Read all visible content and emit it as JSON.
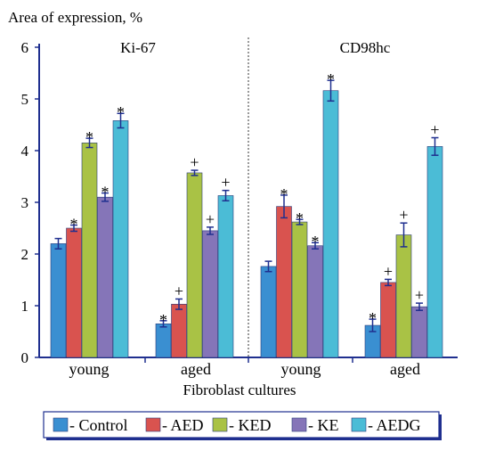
{
  "chart_data": {
    "type": "bar",
    "ylabel": "Area of expression, %",
    "xlabel": "Fibroblast cultures",
    "ylim": [
      0,
      6
    ],
    "yticks": [
      0,
      1,
      2,
      3,
      4,
      5,
      6
    ],
    "grid": false,
    "legend_position": "bottom",
    "panels": [
      {
        "title": "Ki-67",
        "categories": [
          "young",
          "aged"
        ]
      },
      {
        "title": "CD98hc",
        "categories": [
          "young",
          "aged"
        ]
      }
    ],
    "series": [
      {
        "name": "Control",
        "color": "#3a8fd1",
        "values": [
          2.2,
          0.65,
          1.76,
          0.62
        ],
        "errors": [
          0.1,
          0.06,
          0.1,
          0.12
        ],
        "markers": [
          "",
          "*",
          "",
          "*"
        ]
      },
      {
        "name": "AED",
        "color": "#d9534f",
        "values": [
          2.5,
          1.03,
          2.92,
          1.45
        ],
        "errors": [
          0.06,
          0.1,
          0.22,
          0.06
        ],
        "markers": [
          "*",
          "+",
          "*",
          "+"
        ]
      },
      {
        "name": "KED",
        "color": "#a9c245",
        "values": [
          4.15,
          3.57,
          2.62,
          2.37
        ],
        "errors": [
          0.09,
          0.05,
          0.05,
          0.23
        ],
        "markers": [
          "*",
          "+",
          "*",
          "+"
        ]
      },
      {
        "name": "KE",
        "color": "#8575b8",
        "values": [
          3.1,
          2.45,
          2.16,
          0.98
        ],
        "errors": [
          0.08,
          0.07,
          0.06,
          0.07
        ],
        "markers": [
          "*",
          "+",
          "*",
          "+"
        ]
      },
      {
        "name": "AEDG",
        "color": "#4bbcd6",
        "values": [
          4.58,
          3.13,
          5.16,
          4.08
        ],
        "errors": [
          0.14,
          0.1,
          0.2,
          0.17
        ],
        "markers": [
          "*",
          "+",
          "*",
          "+"
        ]
      }
    ]
  }
}
